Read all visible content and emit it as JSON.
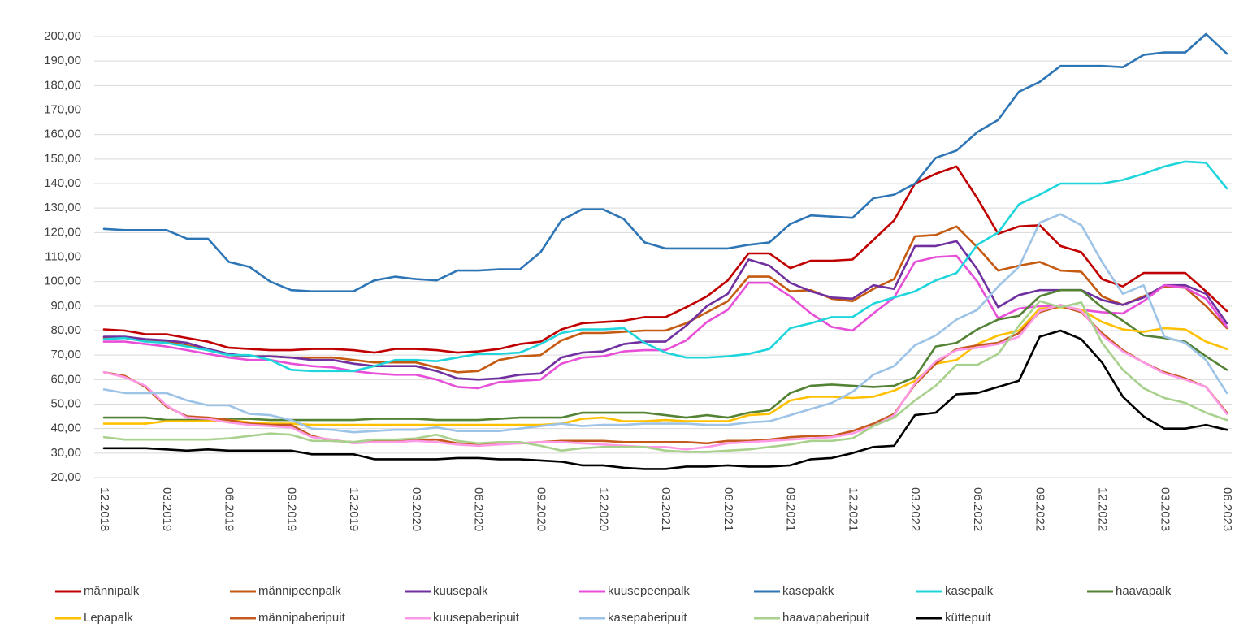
{
  "chart_data": {
    "type": "line",
    "categories": [
      "12.2018",
      null,
      null,
      "03.2019",
      null,
      null,
      "06.2019",
      null,
      null,
      "09.2019",
      null,
      null,
      "12.2019",
      null,
      null,
      "03.2020",
      null,
      null,
      "06.2020",
      null,
      null,
      "09.2020",
      null,
      null,
      "12.2020",
      null,
      null,
      "03.2021",
      null,
      null,
      "06.2021",
      null,
      null,
      "09.2021",
      null,
      null,
      "12.2021",
      null,
      null,
      "03.2022",
      null,
      null,
      "06.2022",
      null,
      null,
      "09.2022",
      null,
      null,
      "12.2022",
      null,
      null,
      "03.2023",
      null,
      null,
      "06.2023"
    ],
    "ylim": [
      20,
      200
    ],
    "yticks": [
      {
        "value": 20,
        "label": "20,00"
      },
      {
        "value": 30,
        "label": "30,00"
      },
      {
        "value": 40,
        "label": "40,00"
      },
      {
        "value": 50,
        "label": "50,00"
      },
      {
        "value": 60,
        "label": "60,00"
      },
      {
        "value": 70,
        "label": "70,00"
      },
      {
        "value": 80,
        "label": "80,00"
      },
      {
        "value": 90,
        "label": "90,00"
      },
      {
        "value": 100,
        "label": "100,00"
      },
      {
        "value": 110,
        "label": "110,00"
      },
      {
        "value": 120,
        "label": "120,00"
      },
      {
        "value": 130,
        "label": "130,00"
      },
      {
        "value": 140,
        "label": "140,00"
      },
      {
        "value": 150,
        "label": "150,00"
      },
      {
        "value": 160,
        "label": "160,00"
      },
      {
        "value": 170,
        "label": "170,00"
      },
      {
        "value": 180,
        "label": "180,00"
      },
      {
        "value": 190,
        "label": "190,00"
      },
      {
        "value": 200,
        "label": "200,00"
      }
    ],
    "grid": true,
    "legend": "bottom",
    "series": [
      {
        "name": "männipalk",
        "color": "#c00000",
        "values": [
          80.5,
          80,
          78.5,
          78.5,
          77,
          75.5,
          73,
          72.5,
          72,
          72,
          72.5,
          72.5,
          72,
          71,
          72.5,
          72.5,
          72,
          71,
          71.5,
          72.5,
          74.5,
          75.5,
          80.5,
          83,
          83.5,
          84,
          85.5,
          85.5,
          89.5,
          94,
          100.5,
          111.5,
          111.5,
          105.5,
          108.5,
          108.5,
          109,
          117,
          125,
          140,
          144,
          147,
          134,
          119.5,
          122.5,
          123,
          114.5,
          112,
          101,
          98,
          103.5,
          103.5,
          103.5,
          96,
          88
        ]
      },
      {
        "name": "männipeenpalk",
        "color": "#c55a11",
        "values": [
          77,
          77,
          76,
          75.5,
          74,
          72,
          70,
          69.5,
          69.5,
          69,
          69,
          69,
          68,
          67,
          67,
          67,
          65,
          63,
          63.5,
          68,
          69.5,
          70,
          76,
          79,
          79,
          79.5,
          80,
          80,
          83,
          87.5,
          92,
          102,
          102,
          96,
          96.5,
          93,
          92,
          97,
          101,
          118.5,
          119,
          122.5,
          114,
          104.5,
          106.5,
          108,
          104.5,
          104,
          94,
          90.5,
          94,
          98,
          97.5,
          90,
          81
        ]
      },
      {
        "name": "kuusepalk",
        "color": "#7030a0",
        "values": [
          77.5,
          77.5,
          76.5,
          76,
          75,
          72.5,
          70.5,
          69.5,
          69.5,
          69,
          68,
          68,
          66.5,
          65.5,
          65.5,
          65.5,
          63.5,
          60.5,
          60,
          60.5,
          62,
          62.5,
          69,
          71,
          71.5,
          74.5,
          75.5,
          75.5,
          82,
          90,
          95,
          109,
          106.5,
          99.5,
          96,
          93.5,
          93,
          98.5,
          97,
          114.5,
          114.5,
          116.5,
          105,
          89.5,
          94.5,
          96.5,
          96.5,
          96.5,
          92.5,
          90.5,
          93.5,
          98.5,
          98.5,
          95,
          83
        ]
      },
      {
        "name": "kuusepeenpalk",
        "color": "#e84fd8",
        "values": [
          75.5,
          75.5,
          74.5,
          73.5,
          72,
          70.5,
          69,
          68,
          68,
          66.5,
          65.5,
          65,
          63.5,
          62.5,
          62,
          62,
          60,
          57,
          56.5,
          59,
          59.5,
          60,
          66.5,
          69,
          69.5,
          71.5,
          72,
          72,
          76,
          83.5,
          88.5,
          99.5,
          99.5,
          94,
          87,
          81.5,
          80,
          87,
          93.5,
          108,
          110,
          110.5,
          100,
          85,
          89,
          90,
          90,
          88.5,
          87.5,
          87,
          92,
          98.5,
          97.5,
          93,
          81.5
        ]
      },
      {
        "name": "kasepakk",
        "color": "#2e75b6",
        "values": [
          121.5,
          121,
          121,
          121,
          117.5,
          117.5,
          108,
          106,
          100,
          96.5,
          96,
          96,
          96,
          100.5,
          102,
          101,
          100.5,
          104.5,
          104.5,
          105,
          105,
          112,
          125,
          129.5,
          129.5,
          125.5,
          116,
          113.5,
          113.5,
          113.5,
          113.5,
          115,
          116,
          123.5,
          127,
          126.5,
          126,
          134,
          135.5,
          140,
          150.5,
          153.5,
          161,
          166,
          177.5,
          181.5,
          188,
          188,
          188,
          187.5,
          192.5,
          193.5,
          193.5,
          201,
          193
        ]
      },
      {
        "name": "kasepalk",
        "color": "#1fd5dc",
        "values": [
          76.5,
          77,
          75.5,
          75,
          73.5,
          72,
          70,
          70,
          68,
          64,
          63.5,
          63.5,
          63.5,
          65.5,
          68,
          68,
          67.5,
          69,
          70.5,
          70.5,
          71,
          74.5,
          79,
          80.5,
          80.5,
          81,
          75,
          71,
          69,
          69,
          69.5,
          70.5,
          72.5,
          81,
          83,
          85.5,
          85.5,
          91,
          93.5,
          96,
          100.5,
          103.5,
          115,
          120,
          131.5,
          135.5,
          140,
          140,
          140,
          141.5,
          144,
          147,
          149,
          148.5,
          138
        ]
      },
      {
        "name": "haavapalk",
        "color": "#548235",
        "values": [
          44.5,
          44.5,
          44.5,
          43.5,
          43.5,
          43.5,
          44,
          44,
          43.5,
          43.5,
          43.5,
          43.5,
          43.5,
          44,
          44,
          44,
          43.5,
          43.5,
          43.5,
          44,
          44.5,
          44.5,
          44.5,
          46.5,
          46.5,
          46.5,
          46.5,
          45.5,
          44.5,
          45.5,
          44.5,
          46.5,
          47.5,
          54.5,
          57.5,
          58,
          57.5,
          57,
          57.5,
          61,
          73.5,
          75,
          80.5,
          84.5,
          86,
          94,
          96.5,
          96.5,
          89.5,
          84,
          78,
          77,
          75.5,
          69.5,
          64
        ]
      },
      {
        "name": "Lepapalk",
        "color": "#ffc000",
        "values": [
          42,
          42,
          42,
          43,
          43,
          43,
          43.5,
          42.5,
          42,
          42,
          41.5,
          41.5,
          41.5,
          41.5,
          41.5,
          41.5,
          41.5,
          41.5,
          41.5,
          41.5,
          41.5,
          41.5,
          42,
          44,
          44.5,
          43,
          43,
          43.5,
          43,
          43,
          43,
          45.5,
          46,
          51.5,
          53,
          53,
          52.5,
          53,
          55.5,
          59.5,
          66.5,
          68,
          74.5,
          78,
          80,
          89,
          89.5,
          88.5,
          83.5,
          80.5,
          79.5,
          81,
          80.5,
          75.5,
          72.5
        ]
      },
      {
        "name": "männipaberipuit",
        "color": "#c65a1e",
        "values": [
          63,
          61.5,
          57,
          49,
          45,
          44.5,
          43.5,
          42,
          41.5,
          41.5,
          37,
          35,
          34.5,
          35,
          35,
          35.5,
          35.5,
          34,
          33.5,
          34,
          34,
          34.5,
          35,
          35,
          35,
          34.5,
          34.5,
          34.5,
          34.5,
          34,
          35,
          35,
          35.5,
          36.5,
          37,
          37,
          39,
          42,
          46,
          58,
          66.5,
          72.5,
          74,
          75,
          79,
          87.5,
          90,
          87.5,
          79,
          72,
          67,
          63,
          60.5,
          57,
          46.5
        ]
      },
      {
        "name": "kuusepaberipuit",
        "color": "#ff99e6",
        "values": [
          63,
          61,
          57.5,
          49.5,
          44.5,
          44,
          42.5,
          41.5,
          41,
          40.5,
          36.5,
          35.5,
          34,
          34.5,
          34.5,
          35,
          34.5,
          33.5,
          33,
          33.5,
          34,
          34.5,
          34.5,
          34,
          33.5,
          33,
          32.5,
          32.5,
          31.5,
          32.5,
          34,
          34.5,
          35,
          35.5,
          36,
          36.5,
          38,
          41,
          45.5,
          58.5,
          67.5,
          72,
          73,
          74.5,
          77.5,
          88,
          90.5,
          88,
          78,
          71.5,
          67,
          62.5,
          60,
          57,
          46
        ]
      },
      {
        "name": "kasepaberipuit",
        "color": "#9dc3e6",
        "values": [
          56,
          54.5,
          54.5,
          54.5,
          51.5,
          49.5,
          49.5,
          46,
          45.5,
          43.5,
          40,
          39.5,
          38.5,
          39,
          39.5,
          39.5,
          40.5,
          39,
          39,
          39,
          40,
          41,
          42,
          41,
          41.5,
          41.5,
          42,
          42,
          42,
          41.5,
          41.5,
          42.5,
          43,
          45.5,
          48,
          50.5,
          55,
          62,
          65.5,
          74,
          78,
          84.5,
          88.5,
          98,
          106,
          124,
          127.5,
          123,
          108,
          95,
          98.5,
          77.5,
          75,
          68,
          54.5
        ]
      },
      {
        "name": "haavapaberipuit",
        "color": "#a9d18e",
        "values": [
          36.5,
          35.5,
          35.5,
          35.5,
          35.5,
          35.5,
          36,
          37,
          38,
          37.5,
          35,
          35,
          34.5,
          35.5,
          35.5,
          36,
          37.5,
          35,
          34,
          34.5,
          34.5,
          33,
          31,
          32,
          32.5,
          32.5,
          32.5,
          31,
          30.5,
          30.5,
          31,
          31.5,
          32.5,
          33.5,
          35,
          35,
          36,
          41,
          44.5,
          51.5,
          57.5,
          66,
          66,
          70.5,
          82,
          92,
          89.5,
          91.5,
          75,
          64,
          56.5,
          52.5,
          50.5,
          46.5,
          43.5
        ]
      },
      {
        "name": "küttepuit",
        "color": "#000000",
        "values": [
          32,
          32,
          32,
          31.5,
          31,
          31.5,
          31,
          31,
          31,
          31,
          29.5,
          29.5,
          29.5,
          27.5,
          27.5,
          27.5,
          27.5,
          28,
          28,
          27.5,
          27.5,
          27,
          26.5,
          25,
          25,
          24,
          23.5,
          23.5,
          24.5,
          24.5,
          25,
          24.5,
          24.5,
          25,
          27.5,
          28,
          30,
          32.5,
          33,
          45.5,
          46.5,
          54,
          54.5,
          57,
          59.5,
          77.5,
          80,
          76.5,
          67,
          53,
          45,
          40,
          40,
          41.5,
          39.5
        ]
      }
    ]
  }
}
